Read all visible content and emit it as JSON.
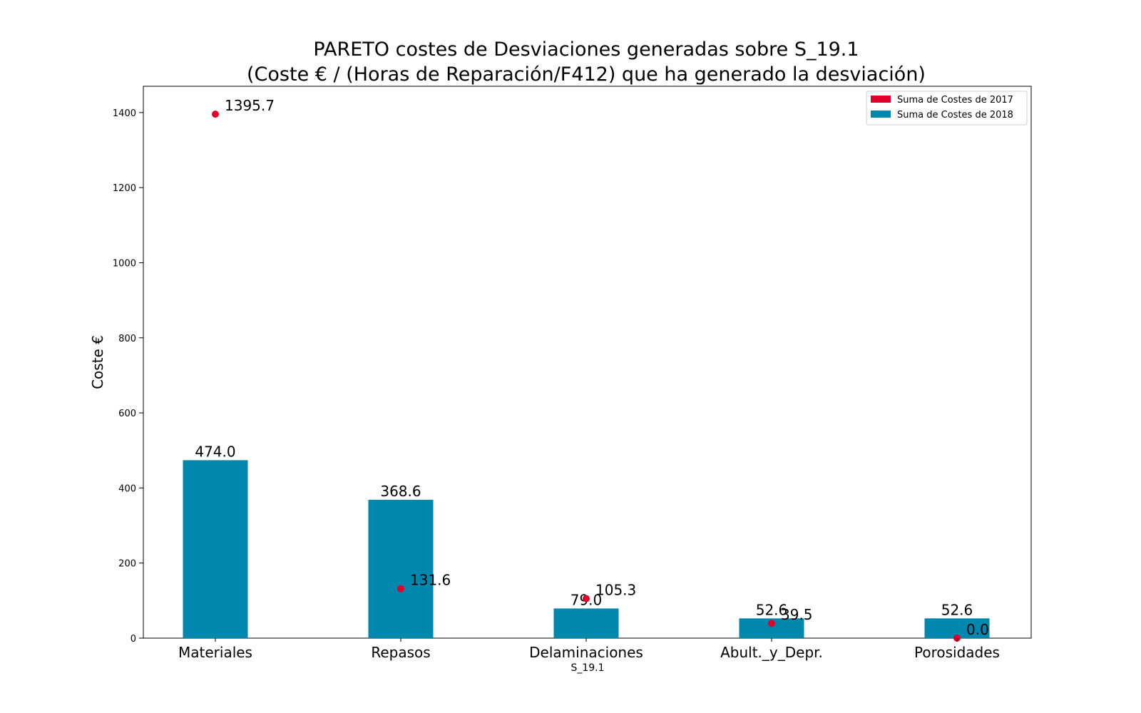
{
  "chart_data": {
    "type": "bar",
    "title": "PARETO costes de Desviaciones  generadas  sobre S_19.1",
    "subtitle": "(Coste € / (Horas de Reparación/F412) que ha generado la desviación)",
    "xlabel": "S_19.1",
    "ylabel": "Coste €",
    "ylim": [
      0,
      1470
    ],
    "yticks": [
      0,
      200,
      400,
      600,
      800,
      1000,
      1200,
      1400
    ],
    "categories": [
      "Materiales",
      "Repasos",
      "Delaminaciones",
      "Abult._y_Depr.",
      "Porosidades"
    ],
    "series": [
      {
        "name": "Suma de Costes de 2017",
        "kind": "scatter",
        "color": "#e0002a",
        "values": [
          1395.7,
          131.6,
          105.3,
          39.5,
          0.0
        ],
        "labels": [
          "1395.7",
          "131.6",
          "105.3",
          "39.5",
          "0.0"
        ]
      },
      {
        "name": "Suma de Costes de 2018",
        "kind": "bar",
        "color": "#0087ad",
        "values": [
          474.0,
          368.6,
          79.0,
          52.6,
          52.6
        ],
        "labels": [
          "474.0",
          "368.6",
          "79.0",
          "52.6",
          "52.6"
        ]
      }
    ],
    "legend_position": "top-right",
    "grid": false
  }
}
